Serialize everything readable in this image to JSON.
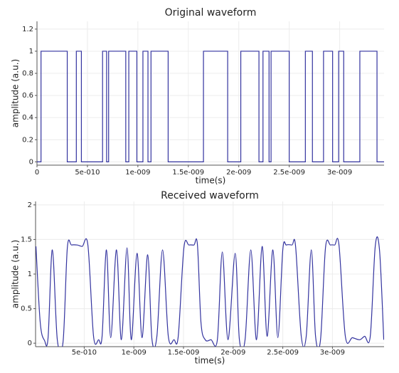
{
  "chart_data": [
    {
      "type": "line",
      "title": "Original waveform",
      "xlabel": "time(s)",
      "ylabel": "amplitude (a.u.)",
      "step": true,
      "smooth": false,
      "grid": true,
      "color": "#33339f",
      "xlim": [
        0,
        3.44e-09
      ],
      "ylim": [
        -0.03,
        1.27
      ],
      "xticks": [
        0,
        {
          "value": 5e-10,
          "label": "5e-010"
        },
        {
          "value": 1e-09,
          "label": "1e-009"
        },
        {
          "value": 1.5e-09,
          "label": "1.5e-009"
        },
        {
          "value": 2e-09,
          "label": "2e-009"
        },
        {
          "value": 2.5e-09,
          "label": "2.5e-009"
        },
        {
          "value": 3e-09,
          "label": "3e-009"
        }
      ],
      "yticks": [
        0,
        0.2,
        0.4,
        0.6,
        0.8,
        1,
        1.2
      ],
      "x": [
        0,
        4e-11,
        4e-11,
        3e-10,
        3e-10,
        3.9e-10,
        3.9e-10,
        4.4e-10,
        4.4e-10,
        6.5e-10,
        6.5e-10,
        6.9e-10,
        6.9e-10,
        7.1e-10,
        7.1e-10,
        8.8e-10,
        8.8e-10,
        9.1e-10,
        9.1e-10,
        9.9e-10,
        9.9e-10,
        1.05e-09,
        1.05e-09,
        1.1e-09,
        1.1e-09,
        1.13e-09,
        1.13e-09,
        1.3e-09,
        1.3e-09,
        1.65e-09,
        1.65e-09,
        1.89e-09,
        1.89e-09,
        2.02e-09,
        2.02e-09,
        2.2e-09,
        2.2e-09,
        2.24e-09,
        2.24e-09,
        2.3e-09,
        2.3e-09,
        2.32e-09,
        2.32e-09,
        2.5e-09,
        2.5e-09,
        2.66e-09,
        2.66e-09,
        2.73e-09,
        2.73e-09,
        2.84e-09,
        2.84e-09,
        2.93e-09,
        2.93e-09,
        2.99e-09,
        2.99e-09,
        3.04e-09,
        3.04e-09,
        3.2e-09,
        3.2e-09,
        3.37e-09,
        3.37e-09,
        3.44e-09
      ],
      "values": [
        0,
        0,
        1,
        1,
        0,
        0,
        1,
        1,
        0,
        0,
        1,
        1,
        0,
        0,
        1,
        1,
        0,
        0,
        1,
        1,
        0,
        0,
        1,
        1,
        0,
        0,
        1,
        1,
        0,
        0,
        1,
        1,
        0,
        0,
        1,
        1,
        0,
        0,
        1,
        1,
        0,
        0,
        1,
        1,
        0,
        0,
        1,
        1,
        0,
        0,
        1,
        1,
        0,
        0,
        1,
        1,
        0,
        0,
        1,
        1,
        0,
        0
      ]
    },
    {
      "type": "line",
      "title": "Received waveform",
      "xlabel": "time(s)",
      "ylabel": "amplitude (a.u.)",
      "step": false,
      "smooth": true,
      "grid": true,
      "color": "#33339f",
      "xlim": [
        1e-11,
        3.52e-09
      ],
      "ylim": [
        -0.05,
        2.05
      ],
      "xticks": [
        {
          "value": 5e-10,
          "label": "5e-010"
        },
        {
          "value": 1e-09,
          "label": "1e-009"
        },
        {
          "value": 1.5e-09,
          "label": "1.5e-009"
        },
        {
          "value": 2e-09,
          "label": "2e-009"
        },
        {
          "value": 2.5e-09,
          "label": "2.5e-009"
        },
        {
          "value": 3e-09,
          "label": "3e-009"
        }
      ],
      "yticks": [
        0,
        0.5,
        1,
        1.5,
        2
      ],
      "x": [
        1.4e-11,
        5.7e-11,
        1e-10,
        1.36e-10,
        1.79e-10,
        2.29e-10,
        2.87e-10,
        3.3e-10,
        3.72e-10,
        4.3e-10,
        4.8e-10,
        5.37e-10,
        5.94e-10,
        6.45e-10,
        6.8e-10,
        7.24e-10,
        7.67e-10,
        8.25e-10,
        8.74e-10,
        9.31e-10,
        9.74e-10,
        1.032e-09,
        1.082e-09,
        1.139e-09,
        1.182e-09,
        1.232e-09,
        1.289e-09,
        1.347e-09,
        1.404e-09,
        1.447e-09,
        1.504e-09,
        1.554e-09,
        1.605e-09,
        1.64e-09,
        1.676e-09,
        1.719e-09,
        1.777e-09,
        1.841e-09,
        1.891e-09,
        1.948e-09,
        2.02e-09,
        2.063e-09,
        2.12e-09,
        2.178e-09,
        2.235e-09,
        2.292e-09,
        2.342e-09,
        2.4e-09,
        2.45e-09,
        2.5e-09,
        2.536e-09,
        2.593e-09,
        2.629e-09,
        2.686e-09,
        2.736e-09,
        2.787e-09,
        2.83e-09,
        2.88e-09,
        2.93e-09,
        2.98e-09,
        3.023e-09,
        3.066e-09,
        3.13e-09,
        3.202e-09,
        3.274e-09,
        3.324e-09,
        3.381e-09,
        3.431e-09,
        3.474e-09,
        3.517e-09
      ],
      "values": [
        1.4,
        0.3,
        0.04,
        0.08,
        1.35,
        0.05,
        0.02,
        1.38,
        1.42,
        1.42,
        1.4,
        1.42,
        0.1,
        0.05,
        0.1,
        1.35,
        0.08,
        1.35,
        0.05,
        1.38,
        0.05,
        1.3,
        0.08,
        1.28,
        0.06,
        0.1,
        1.35,
        0.1,
        0.05,
        0.1,
        1.38,
        1.42,
        1.42,
        1.43,
        0.3,
        0.05,
        0.05,
        0.05,
        1.32,
        0.05,
        1.3,
        0.05,
        0.05,
        1.35,
        0.05,
        1.4,
        0.1,
        1.35,
        0.08,
        1.35,
        1.42,
        1.42,
        1.4,
        0.1,
        0.1,
        1.35,
        0.1,
        0.05,
        1.38,
        1.42,
        1.42,
        1.42,
        0.1,
        0.08,
        0.05,
        0.1,
        0.1,
        1.4,
        1.35,
        0.05
      ]
    }
  ]
}
